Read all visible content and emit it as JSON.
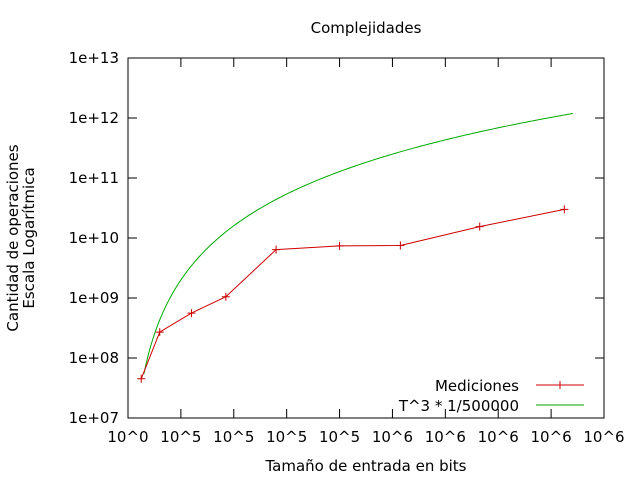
{
  "chart_data": {
    "type": "line",
    "title": "Complejidades",
    "xlabel": "Tamaño de entrada en bits",
    "ylabel_lines": [
      "Cantidad de operaciones",
      "Escala Logarítmica"
    ],
    "y_scale": "log",
    "ylim": [
      10000000,
      10000000000000
    ],
    "y_ticks": [
      {
        "value": 10000000,
        "label": "1e+07"
      },
      {
        "value": 100000000,
        "label": "1e+08"
      },
      {
        "value": 1000000000,
        "label": "1e+09"
      },
      {
        "value": 10000000000,
        "label": "1e+10"
      },
      {
        "value": 100000000000,
        "label": "1e+11"
      },
      {
        "value": 1000000000000,
        "label": "1e+12"
      },
      {
        "value": 10000000000000,
        "label": "1e+13"
      }
    ],
    "xlim": [
      0,
      900000
    ],
    "x_ticks": [
      {
        "value": 0,
        "label": "10^0"
      },
      {
        "value": 100000,
        "label": "10^5"
      },
      {
        "value": 200000,
        "label": "10^5"
      },
      {
        "value": 300000,
        "label": "10^5"
      },
      {
        "value": 400000,
        "label": "10^5"
      },
      {
        "value": 500000,
        "label": "10^6"
      },
      {
        "value": 600000,
        "label": "10^6"
      },
      {
        "value": 700000,
        "label": "10^6"
      },
      {
        "value": 800000,
        "label": "10^6"
      },
      {
        "value": 900000,
        "label": "10^6"
      }
    ],
    "grid": false,
    "legend_position": "bottom-right",
    "series": [
      {
        "name": "Mediciones",
        "color": "#cc0000",
        "marker": "plus",
        "x": [
          25000,
          60000,
          120000,
          185000,
          280000,
          400000,
          515000,
          665000,
          825000
        ],
        "y": [
          45000000,
          270000000,
          560000000,
          1050000000,
          6400000000,
          7400000000,
          7500000000,
          15500000000,
          30000000000
        ]
      },
      {
        "name": "T^3 * 1/500000",
        "color": "#00aa00",
        "marker": "none",
        "function": "x^3 / 500000",
        "x_range": [
          30000,
          841000
        ]
      }
    ]
  }
}
